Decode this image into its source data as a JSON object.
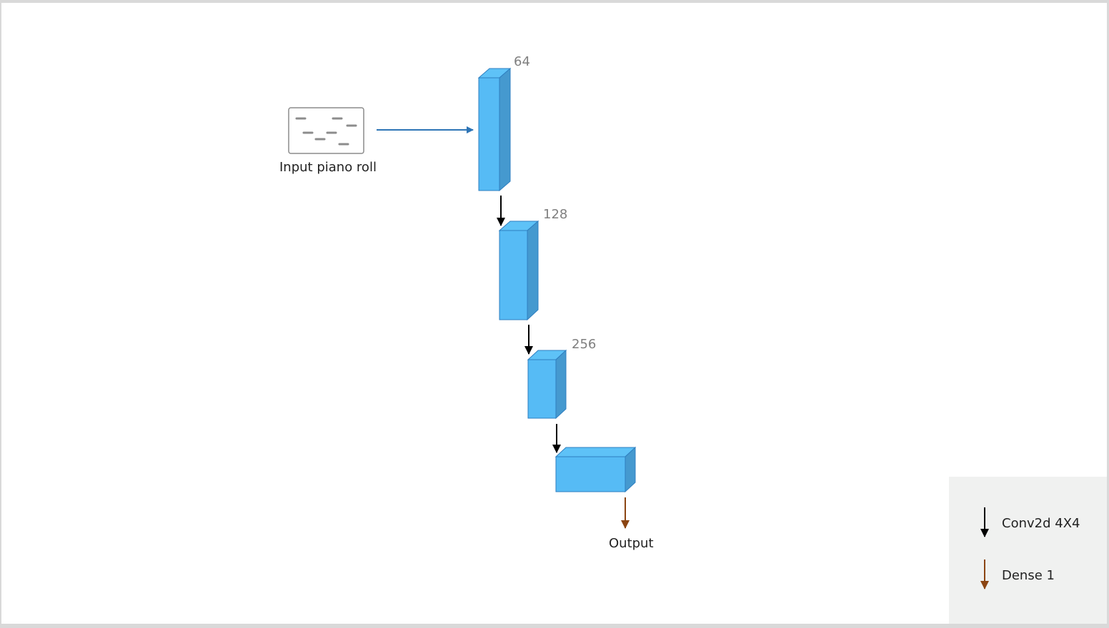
{
  "input": {
    "label": "Input piano roll",
    "icon": "piano-roll-icon"
  },
  "blocks": [
    {
      "channels": "64"
    },
    {
      "channels": "128"
    },
    {
      "channels": "256"
    },
    {
      "channels": ""
    }
  ],
  "output": {
    "label": "Output"
  },
  "legend": {
    "items": [
      {
        "label": "Conv2d 4X4",
        "color": "#000000"
      },
      {
        "label": "Dense 1",
        "color": "#8b4513"
      }
    ]
  },
  "colors": {
    "block_front": "#56bbf5",
    "block_top": "#5ec2f7",
    "block_side": "#4599cf",
    "block_edge": "#2f7fc0",
    "input_arrow": "#2e75b6",
    "conv_arrow": "#000000",
    "dense_arrow": "#8b4513"
  }
}
